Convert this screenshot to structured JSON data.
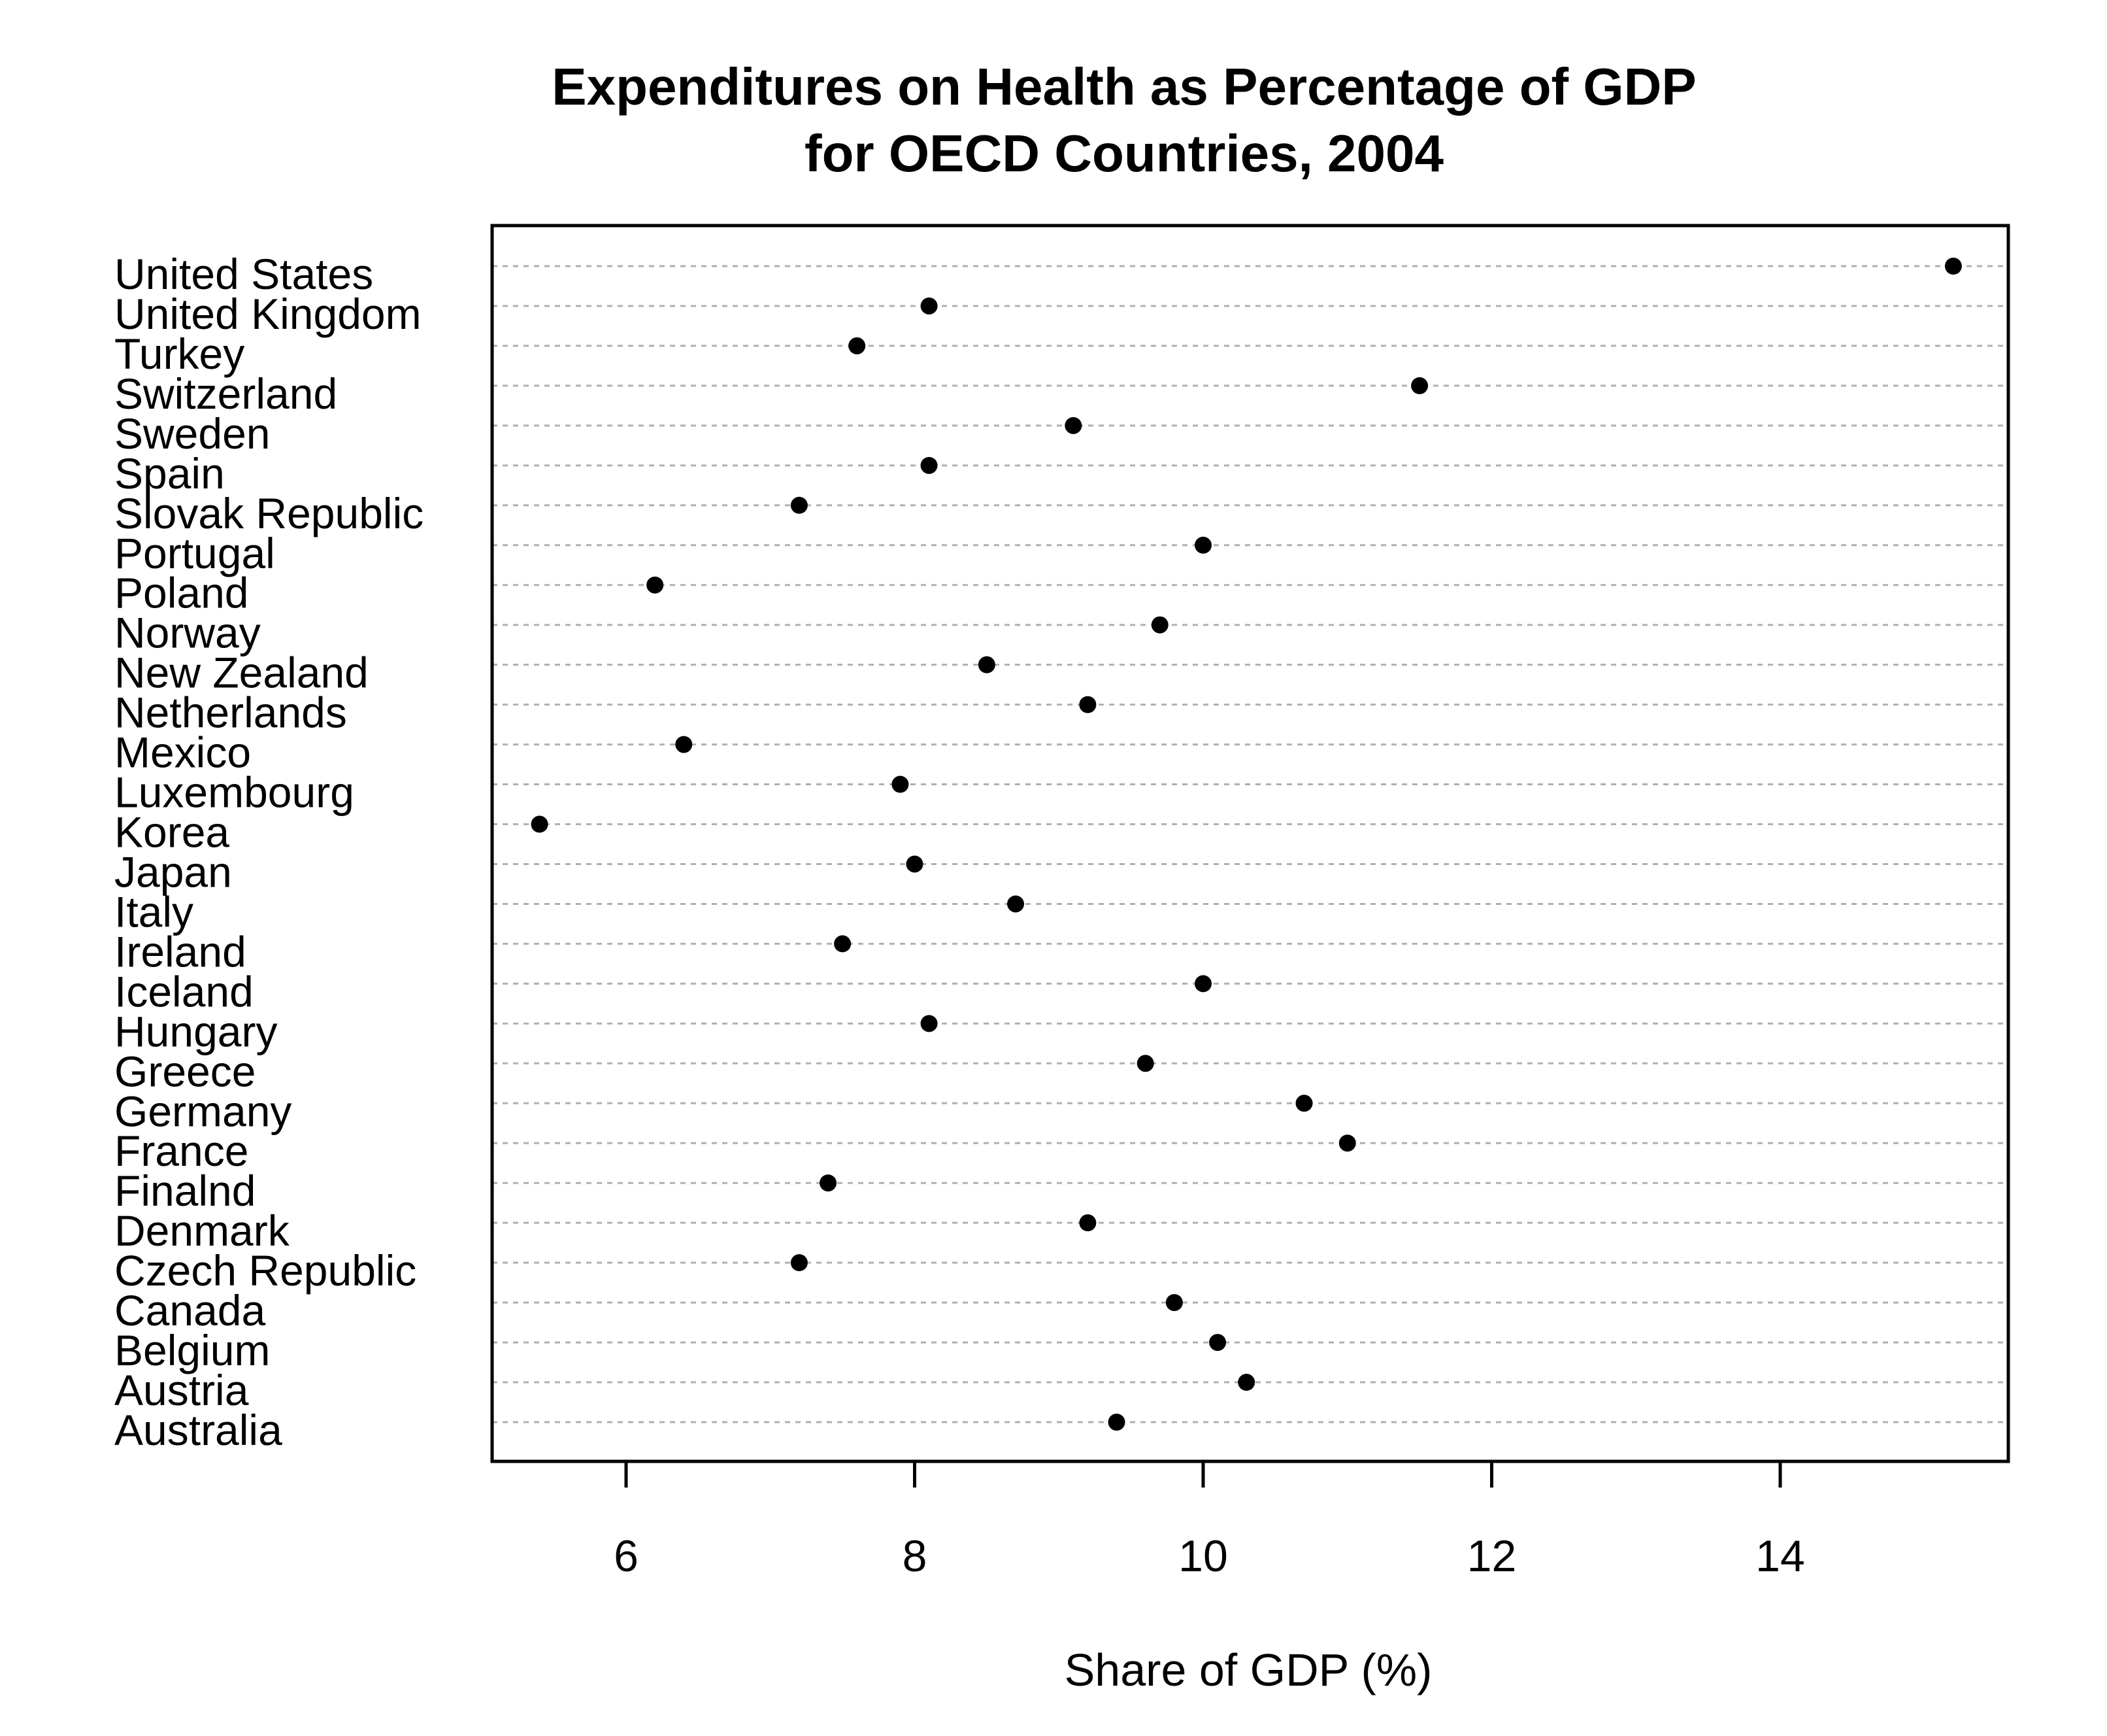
{
  "chart_data": {
    "type": "scatter",
    "title_line1": "Expenditures on Health as Percentage of GDP",
    "title_line2": "for OECD Countries, 2004",
    "xlabel": "Share of GDP (%)",
    "ylabel": "",
    "xlim": [
      5.1,
      15.6
    ],
    "xticks": [
      6,
      8,
      10,
      12,
      14
    ],
    "grid": "dotted horizontal guide per category",
    "categories": [
      "United States",
      "United Kingdom",
      "Turkey",
      "Switzerland",
      "Sweden",
      "Spain",
      "Slovak Republic",
      "Portugal",
      "Poland",
      "Norway",
      "New Zealand",
      "Netherlands",
      "Mexico",
      "Luxembourg",
      "Korea",
      "Japan",
      "Italy",
      "Ireland",
      "Iceland",
      "Hungary",
      "Greece",
      "Germany",
      "France",
      "Finalnd",
      "Denmark",
      "Czech Republic",
      "Canada",
      "Belgium",
      "Austria",
      "Australia"
    ],
    "values": [
      15.2,
      8.1,
      7.6,
      11.5,
      9.1,
      8.1,
      7.2,
      10.0,
      6.2,
      9.7,
      8.5,
      9.2,
      6.4,
      7.9,
      5.4,
      8.0,
      8.7,
      7.5,
      10.0,
      8.1,
      9.6,
      10.7,
      11.0,
      7.4,
      9.2,
      7.2,
      9.8,
      10.1,
      10.3,
      9.4
    ]
  }
}
